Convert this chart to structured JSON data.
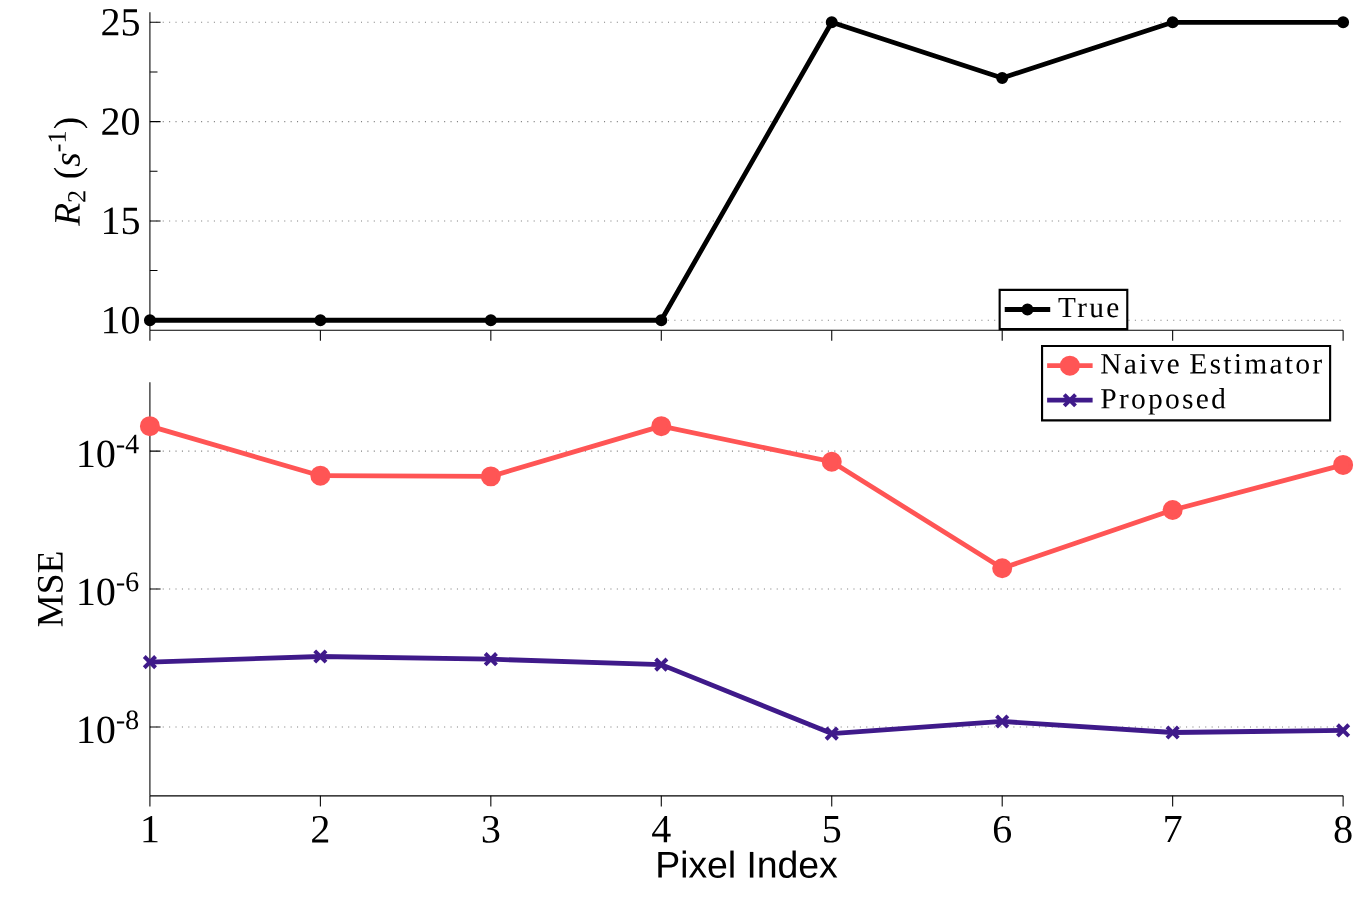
{
  "chart_data": [
    {
      "type": "line",
      "ylabel": "*R*$_{2}$ (*s*$^{-1}$)",
      "x": [
        1,
        2,
        3,
        4,
        5,
        6,
        7,
        8
      ],
      "xlim": [
        1,
        8
      ],
      "xticks": [
        1,
        2,
        3,
        4,
        5,
        6,
        7,
        8
      ],
      "ylim": [
        9.5,
        25.5
      ],
      "yticks": [
        10,
        15,
        20,
        25
      ],
      "grid": "y",
      "legend": "bottom right",
      "tick_labels": "y",
      "series": [
        {
          "name": "True",
          "color": "#000000",
          "marker": "circle",
          "values": [
            10,
            10,
            10,
            10,
            25,
            22.2,
            25,
            25
          ]
        }
      ]
    },
    {
      "type": "line",
      "xlabel": "Pixel Index",
      "ylabel": "MSE",
      "x": [
        1,
        2,
        3,
        4,
        5,
        6,
        7,
        8
      ],
      "xlim": [
        1,
        8
      ],
      "xticks": [
        1,
        2,
        3,
        4,
        5,
        6,
        7,
        8
      ],
      "log": "y",
      "ylim": [
        1e-09,
        0.001
      ],
      "yticks": [
        {
          "value": 1e-08,
          "label": "10$^{-8}$"
        },
        {
          "value": 1e-06,
          "label": "10$^{-6}$"
        },
        {
          "value": 0.0001,
          "label": "10$^{-4}$"
        }
      ],
      "grid": "y",
      "legend": "top right",
      "series": [
        {
          "name": "Naive Estimator",
          "color": "#ff5555",
          "marker": "circle",
          "values": [
            0.00023,
            4.4e-05,
            4.3e-05,
            0.00023,
            7e-05,
            2e-06,
            1.4e-05,
            6.3e-05
          ]
        },
        {
          "name": "Proposed",
          "color": "#3f1a8a",
          "marker": "cross",
          "values": [
            8.7e-08,
            1.05e-07,
            9.6e-08,
            8e-08,
            8e-09,
            1.2e-08,
            8.3e-09,
            8.9e-09
          ]
        }
      ]
    }
  ]
}
